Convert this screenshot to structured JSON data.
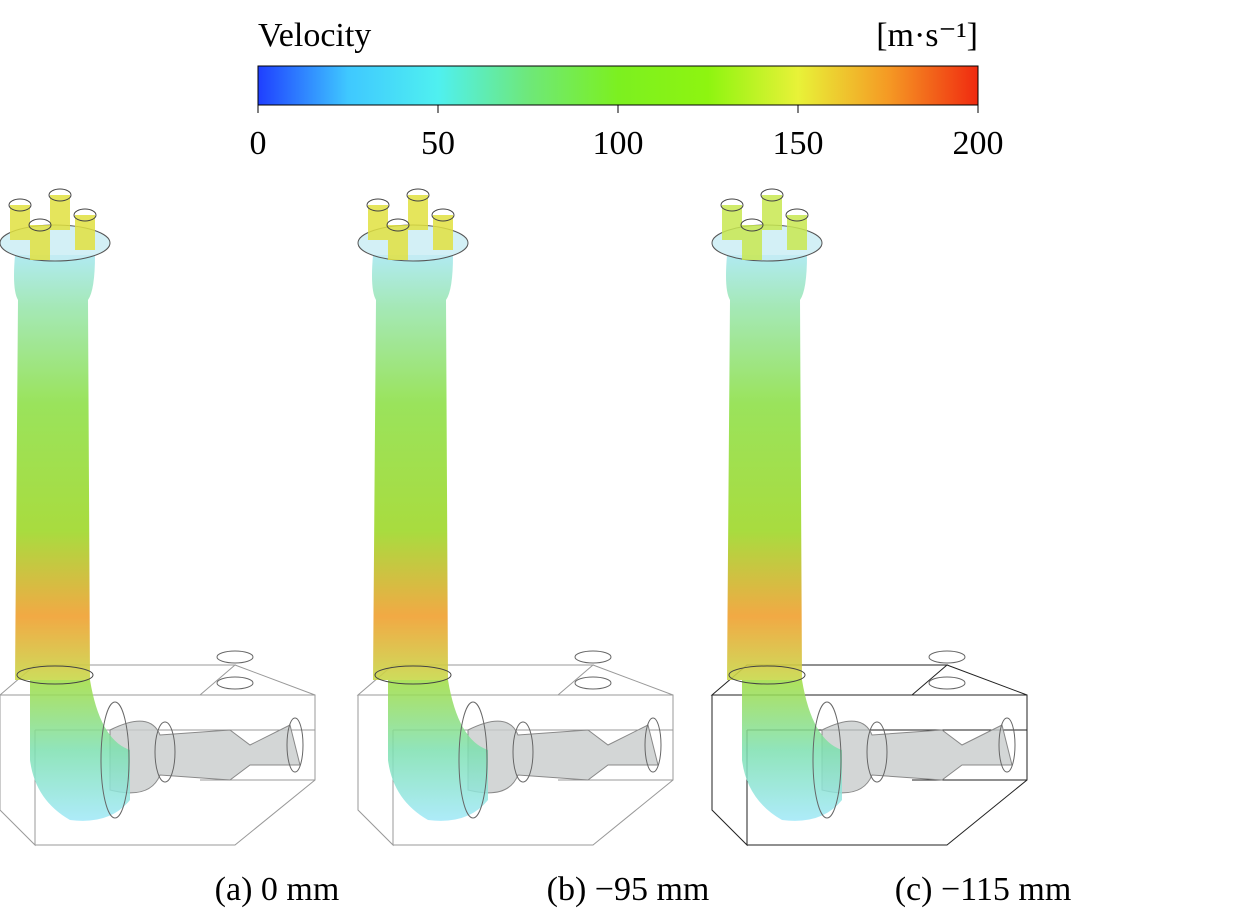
{
  "colorbar": {
    "title": "Velocity",
    "unit": "[m·s⁻¹]",
    "lim": [
      0,
      200
    ],
    "ticks": [
      0,
      50,
      100,
      150,
      200
    ],
    "colors": [
      "#1f3fff",
      "#3fc8ff",
      "#4ff0f0",
      "#6ee87a",
      "#7cf020",
      "#8ef410",
      "#e8f238",
      "#f59a24",
      "#f02a10"
    ]
  },
  "panels": [
    {
      "caption": "(a) 0 mm"
    },
    {
      "caption": "(b) −95 mm"
    },
    {
      "caption": "(c) −115 mm"
    }
  ]
}
